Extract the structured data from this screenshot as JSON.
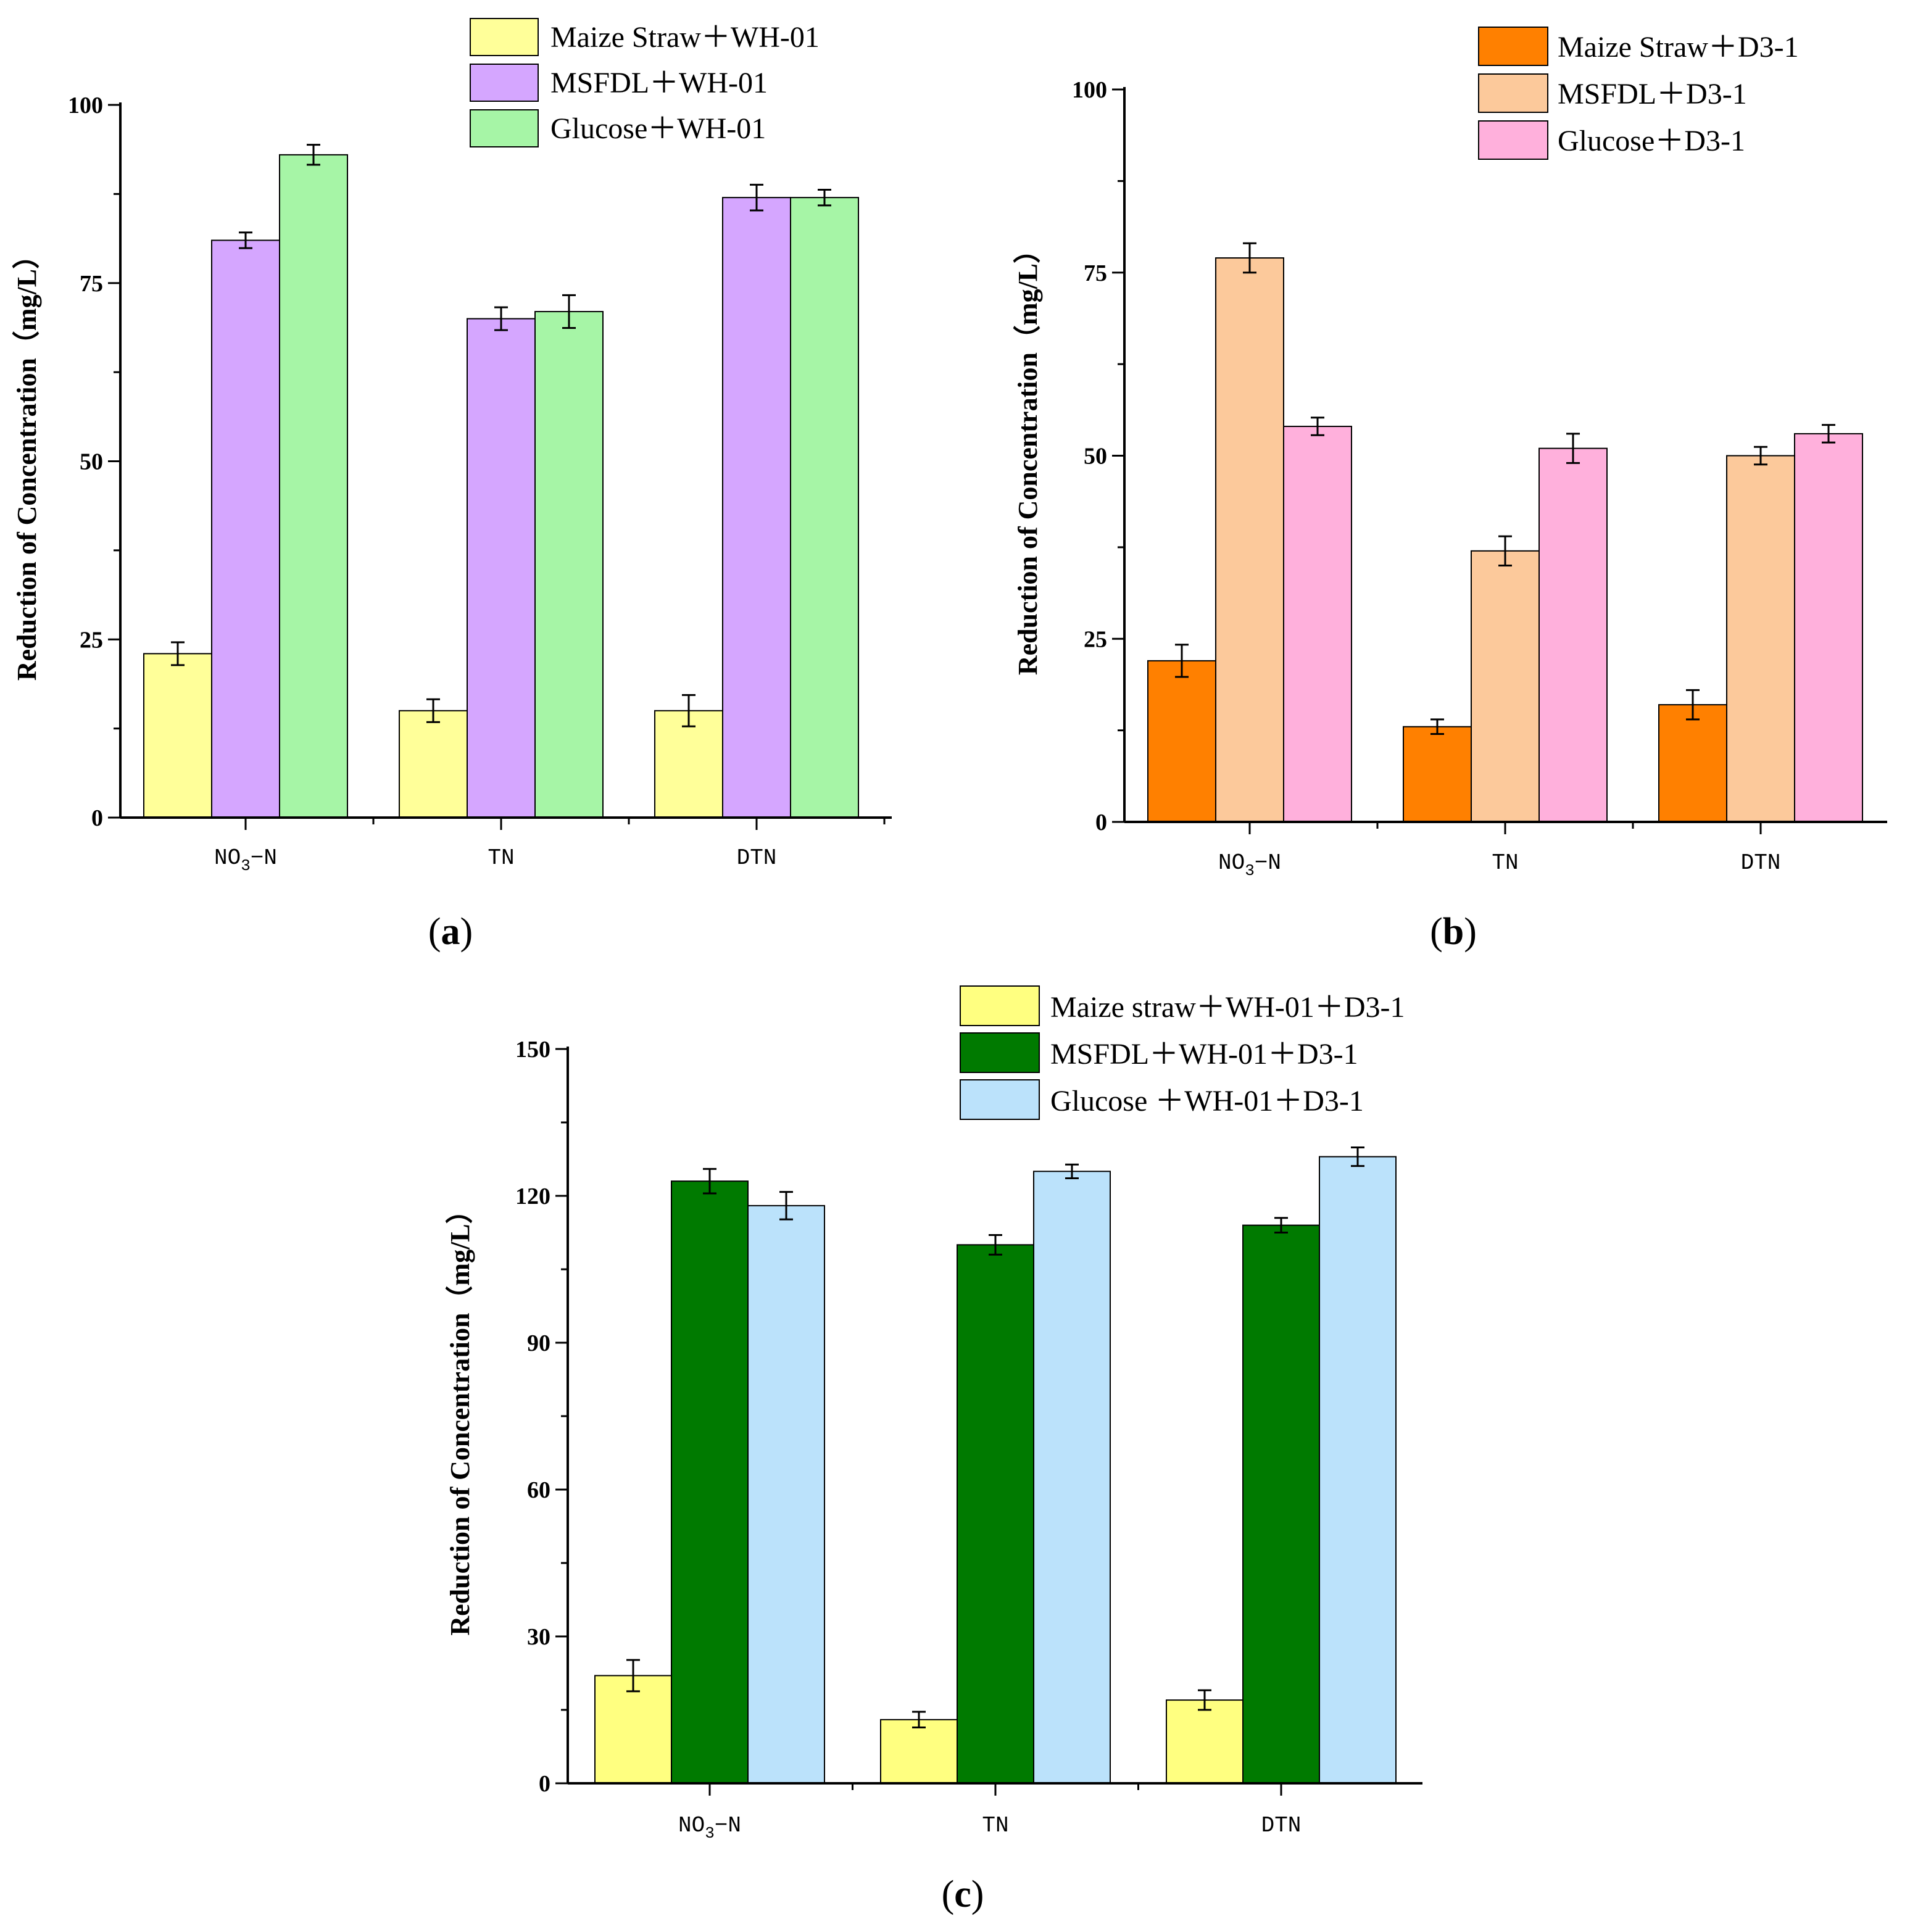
{
  "chart_data": [
    {
      "type": "bar",
      "panel_label": "a",
      "ylabel": "Reduction of Concentration（mg/L）",
      "ylim": [
        0,
        100
      ],
      "yticks": [
        0,
        25,
        50,
        75,
        100
      ],
      "categories": [
        {
          "main": "NO",
          "sub": "3",
          "rest": "−N"
        },
        {
          "main": "TN",
          "sub": "",
          "rest": ""
        },
        {
          "main": "DTN",
          "sub": "",
          "rest": ""
        }
      ],
      "series": [
        {
          "name": "Maize Straw＋WH-01",
          "color": "#ffff99",
          "values": [
            23,
            15,
            15
          ],
          "errors": [
            1.6,
            1.6,
            2.2
          ]
        },
        {
          "name": "MSFDL＋WH-01",
          "color": "#d5a6ff",
          "values": [
            81,
            70,
            87
          ],
          "errors": [
            1.1,
            1.6,
            1.8
          ]
        },
        {
          "name": "Glucose＋WH-01",
          "color": "#a6f5a6",
          "values": [
            93,
            71,
            87
          ],
          "errors": [
            1.4,
            2.3,
            1.1
          ]
        }
      ]
    },
    {
      "type": "bar",
      "panel_label": "b",
      "ylabel": "Reduction of Concentration（mg/L）",
      "ylim": [
        0,
        100
      ],
      "yticks": [
        0,
        25,
        50,
        75,
        100
      ],
      "categories": [
        {
          "main": "NO",
          "sub": "3",
          "rest": "−N"
        },
        {
          "main": "TN",
          "sub": "",
          "rest": ""
        },
        {
          "main": "DTN",
          "sub": "",
          "rest": ""
        }
      ],
      "series": [
        {
          "name": "Maize Straw＋D3-1",
          "color": "#ff8000",
          "values": [
            22,
            13,
            16
          ],
          "errors": [
            2.2,
            1.0,
            2.0
          ]
        },
        {
          "name": "MSFDL＋D3-1",
          "color": "#fcc99b",
          "values": [
            77,
            37,
            50
          ],
          "errors": [
            2.0,
            2.0,
            1.2
          ]
        },
        {
          "name": "Glucose＋D3-1",
          "color": "#ffb0dc",
          "values": [
            54,
            51,
            53
          ],
          "errors": [
            1.2,
            2.0,
            1.2
          ]
        }
      ]
    },
    {
      "type": "bar",
      "panel_label": "c",
      "ylabel": "Reduction of Concentration（mg/L）",
      "ylim": [
        0,
        150
      ],
      "yticks": [
        0,
        30,
        60,
        90,
        120,
        150
      ],
      "categories": [
        {
          "main": "NO",
          "sub": "3",
          "rest": "−N"
        },
        {
          "main": "TN",
          "sub": "",
          "rest": ""
        },
        {
          "main": "DTN",
          "sub": "",
          "rest": ""
        }
      ],
      "series": [
        {
          "name": "Maize straw＋WH-01＋D3-1",
          "color": "#ffff80",
          "values": [
            22,
            13,
            17
          ],
          "errors": [
            3.2,
            1.6,
            2.0
          ]
        },
        {
          "name": "MSFDL＋WH-01＋D3-1",
          "color": "#007a00",
          "values": [
            123,
            110,
            114
          ],
          "errors": [
            2.5,
            2.0,
            1.5
          ]
        },
        {
          "name": "Glucose ＋WH-01＋D3-1",
          "color": "#bbe2fb",
          "values": [
            118,
            125,
            128
          ],
          "errors": [
            2.8,
            1.4,
            1.9
          ]
        }
      ]
    }
  ]
}
